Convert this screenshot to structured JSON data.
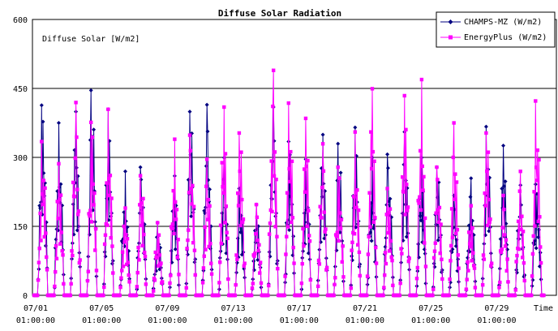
{
  "chart_data": {
    "type": "line",
    "title": "Diffuse Solar Radiation",
    "ylabel": "Diffuse Solar [W/m2]",
    "xlabel": "Time",
    "ylim": [
      0,
      600
    ],
    "yticks": [
      0,
      150,
      300,
      450,
      600
    ],
    "grid": "horizontal",
    "legend": "top-right",
    "x_start": "07/01 01:00:00",
    "x_end": "07/31 23:00:00",
    "xtick_labels": [
      {
        "date": "07/01",
        "time": "01:00:00"
      },
      {
        "date": "07/05",
        "time": "01:00:00"
      },
      {
        "date": "07/09",
        "time": "01:00:00"
      },
      {
        "date": "07/13",
        "time": "01:00:00"
      },
      {
        "date": "07/17",
        "time": "01:00:00"
      },
      {
        "date": "07/21",
        "time": "01:00:00"
      },
      {
        "date": "07/25",
        "time": "01:00:00"
      },
      {
        "date": "07/29",
        "time": "01:00:00"
      }
    ],
    "series": [
      {
        "name": "CHAMPS-MZ (W/m2)",
        "color": "#000080",
        "marker": "diamond",
        "daily_peaks": [
          445,
          380,
          400,
          480,
          410,
          270,
          300,
          160,
          260,
          430,
          420,
          300,
          250,
          200,
          410,
          360,
          300,
          350,
          355,
          370,
          300,
          330,
          360,
          300,
          300,
          220,
          255,
          395,
          330,
          240,
          260
        ]
      },
      {
        "name": "EnergyPlus (W/m2)",
        "color": "#ff00ff",
        "marker": "square",
        "daily_peaks": [
          360,
          290,
          420,
          405,
          410,
          190,
          280,
          160,
          340,
          375,
          300,
          410,
          380,
          200,
          490,
          450,
          390,
          330,
          300,
          360,
          450,
          250,
          440,
          470,
          300,
          380,
          195,
          380,
          220,
          270,
          455
        ]
      }
    ]
  }
}
